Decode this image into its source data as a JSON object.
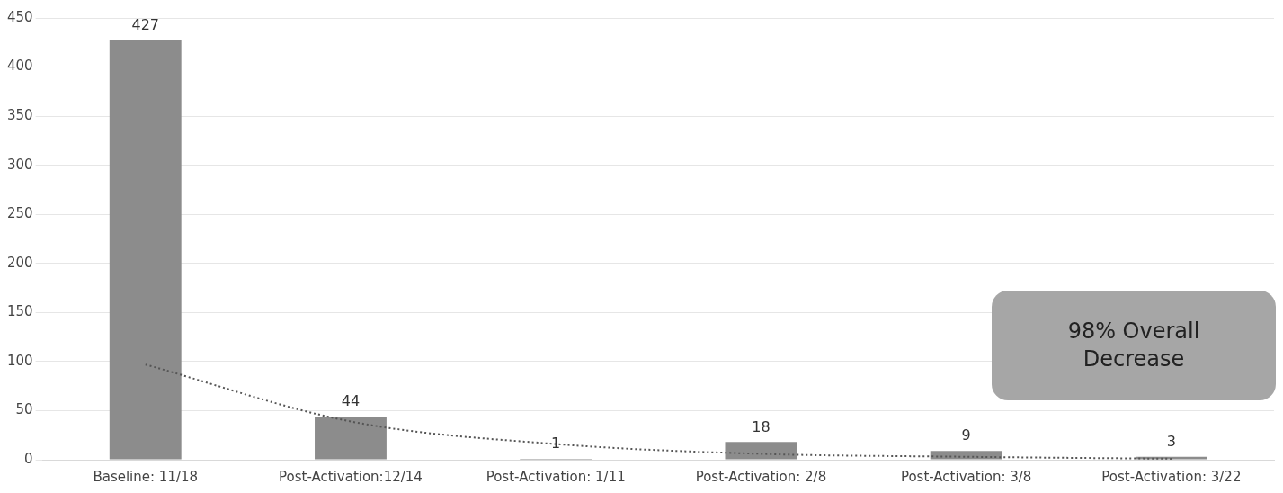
{
  "chart_data": {
    "type": "bar",
    "categories": [
      "Baseline: 11/18",
      "Post-Activation:12/14",
      "Post-Activation: 1/11",
      "Post-Activation: 2/8",
      "Post-Activation: 3/8",
      "Post-Activation: 3/22"
    ],
    "series": [
      {
        "color": "#8c8c8c",
        "values": [
          427,
          44,
          1,
          18,
          9,
          3
        ],
        "value_labels": [
          "427",
          "44",
          "1",
          "18",
          "9",
          "3"
        ]
      },
      {
        "type": "line",
        "color": "#555555",
        "values": [
          97,
          39,
          16,
          6,
          3,
          1
        ],
        "line_style": "dotted",
        "marker": "none"
      }
    ],
    "ylim": [
      0,
      450
    ],
    "yticks": [
      0,
      50,
      100,
      150,
      200,
      250,
      300,
      350,
      400,
      450
    ],
    "grid": "y",
    "legend": false,
    "annotations": [
      "98% Overall Decrease"
    ]
  }
}
